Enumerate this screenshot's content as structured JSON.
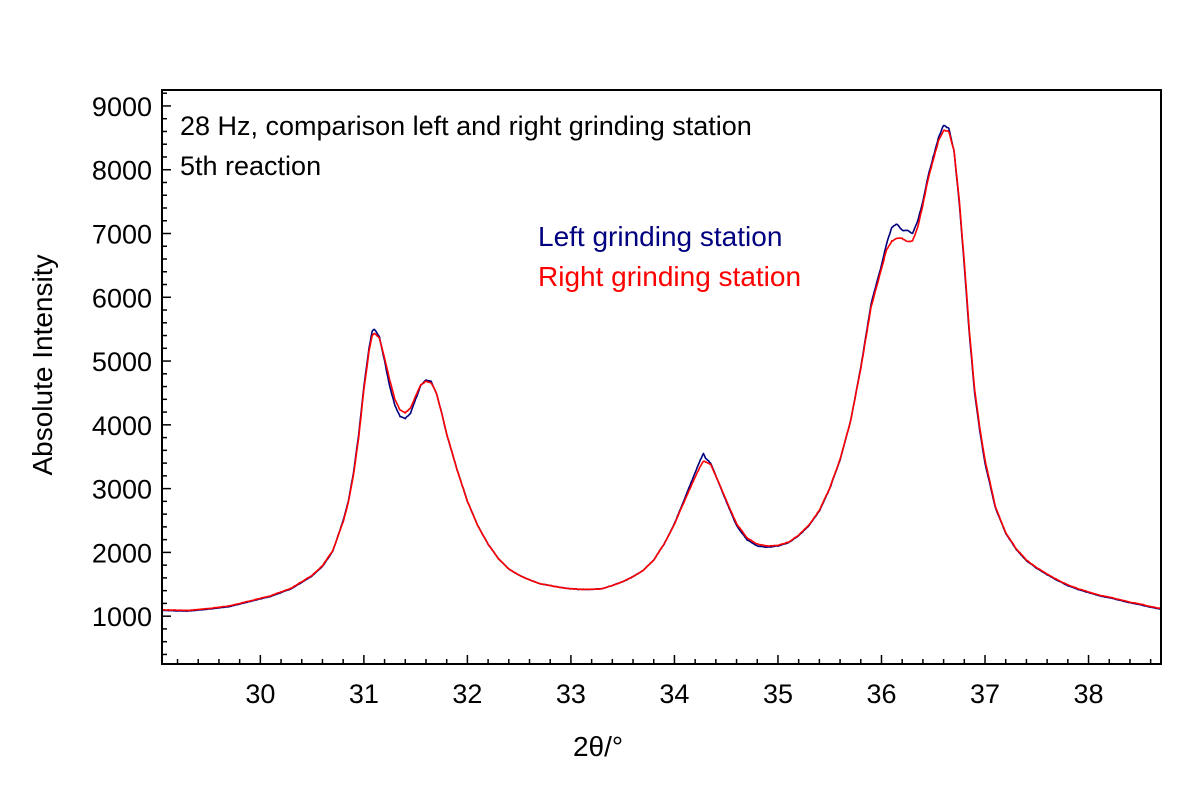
{
  "chart_data": {
    "type": "line",
    "annotation": [
      "28 Hz, comparison left and right grinding station",
      "5th reaction"
    ],
    "xlabel": "2θ/°",
    "ylabel": "Absolute Intensity",
    "xlim": [
      29.05,
      38.7
    ],
    "ylim": [
      250,
      9250
    ],
    "x_ticks": [
      30,
      31,
      32,
      33,
      34,
      35,
      36,
      37,
      38
    ],
    "y_ticks": [
      1000,
      2000,
      3000,
      4000,
      5000,
      6000,
      7000,
      8000,
      9000
    ],
    "grid": false,
    "legend_position": "upper-center",
    "series": [
      {
        "name": "Left grinding station",
        "color": "#000080",
        "points": [
          [
            29.05,
            1090
          ],
          [
            29.3,
            1080
          ],
          [
            29.5,
            1110
          ],
          [
            29.7,
            1150
          ],
          [
            29.9,
            1230
          ],
          [
            30.1,
            1310
          ],
          [
            30.3,
            1430
          ],
          [
            30.5,
            1630
          ],
          [
            30.6,
            1780
          ],
          [
            30.7,
            2020
          ],
          [
            30.8,
            2500
          ],
          [
            30.85,
            2800
          ],
          [
            30.9,
            3250
          ],
          [
            30.95,
            3850
          ],
          [
            31.0,
            4600
          ],
          [
            31.05,
            5200
          ],
          [
            31.08,
            5470
          ],
          [
            31.1,
            5500
          ],
          [
            31.15,
            5380
          ],
          [
            31.2,
            5000
          ],
          [
            31.25,
            4600
          ],
          [
            31.3,
            4300
          ],
          [
            31.35,
            4130
          ],
          [
            31.4,
            4100
          ],
          [
            31.45,
            4180
          ],
          [
            31.5,
            4400
          ],
          [
            31.55,
            4620
          ],
          [
            31.6,
            4700
          ],
          [
            31.65,
            4680
          ],
          [
            31.7,
            4500
          ],
          [
            31.75,
            4200
          ],
          [
            31.8,
            3850
          ],
          [
            31.9,
            3300
          ],
          [
            32.0,
            2800
          ],
          [
            32.1,
            2420
          ],
          [
            32.2,
            2130
          ],
          [
            32.3,
            1900
          ],
          [
            32.4,
            1740
          ],
          [
            32.5,
            1640
          ],
          [
            32.6,
            1570
          ],
          [
            32.7,
            1510
          ],
          [
            32.8,
            1480
          ],
          [
            32.9,
            1450
          ],
          [
            33.0,
            1430
          ],
          [
            33.1,
            1420
          ],
          [
            33.2,
            1420
          ],
          [
            33.3,
            1430
          ],
          [
            33.4,
            1480
          ],
          [
            33.5,
            1540
          ],
          [
            33.6,
            1620
          ],
          [
            33.7,
            1720
          ],
          [
            33.8,
            1880
          ],
          [
            33.9,
            2130
          ],
          [
            34.0,
            2450
          ],
          [
            34.1,
            2850
          ],
          [
            34.2,
            3250
          ],
          [
            34.25,
            3450
          ],
          [
            34.28,
            3550
          ],
          [
            34.3,
            3480
          ],
          [
            34.35,
            3400
          ],
          [
            34.4,
            3200
          ],
          [
            34.5,
            2800
          ],
          [
            34.6,
            2420
          ],
          [
            34.7,
            2200
          ],
          [
            34.8,
            2100
          ],
          [
            34.9,
            2080
          ],
          [
            35.0,
            2100
          ],
          [
            35.1,
            2150
          ],
          [
            35.2,
            2260
          ],
          [
            35.3,
            2420
          ],
          [
            35.4,
            2650
          ],
          [
            35.5,
            3000
          ],
          [
            35.6,
            3450
          ],
          [
            35.7,
            4050
          ],
          [
            35.8,
            4900
          ],
          [
            35.9,
            5900
          ],
          [
            36.0,
            6500
          ],
          [
            36.05,
            6850
          ],
          [
            36.1,
            7100
          ],
          [
            36.15,
            7150
          ],
          [
            36.2,
            7050
          ],
          [
            36.25,
            7050
          ],
          [
            36.3,
            7000
          ],
          [
            36.35,
            7200
          ],
          [
            36.4,
            7500
          ],
          [
            36.45,
            7900
          ],
          [
            36.5,
            8200
          ],
          [
            36.55,
            8500
          ],
          [
            36.6,
            8700
          ],
          [
            36.65,
            8650
          ],
          [
            36.7,
            8300
          ],
          [
            36.75,
            7500
          ],
          [
            36.8,
            6500
          ],
          [
            36.85,
            5400
          ],
          [
            36.9,
            4500
          ],
          [
            36.95,
            3900
          ],
          [
            37.0,
            3400
          ],
          [
            37.1,
            2700
          ],
          [
            37.2,
            2300
          ],
          [
            37.3,
            2050
          ],
          [
            37.4,
            1870
          ],
          [
            37.5,
            1750
          ],
          [
            37.6,
            1650
          ],
          [
            37.7,
            1560
          ],
          [
            37.8,
            1480
          ],
          [
            37.9,
            1420
          ],
          [
            38.0,
            1370
          ],
          [
            38.1,
            1320
          ],
          [
            38.2,
            1290
          ],
          [
            38.3,
            1250
          ],
          [
            38.4,
            1210
          ],
          [
            38.5,
            1180
          ],
          [
            38.6,
            1140
          ],
          [
            38.7,
            1110
          ]
        ]
      },
      {
        "name": "Right grinding station",
        "color": "#ff0000",
        "points": [
          [
            29.05,
            1100
          ],
          [
            29.3,
            1090
          ],
          [
            29.5,
            1120
          ],
          [
            29.7,
            1160
          ],
          [
            29.9,
            1240
          ],
          [
            30.1,
            1320
          ],
          [
            30.3,
            1440
          ],
          [
            30.5,
            1640
          ],
          [
            30.6,
            1790
          ],
          [
            30.7,
            2030
          ],
          [
            30.8,
            2480
          ],
          [
            30.85,
            2780
          ],
          [
            30.9,
            3220
          ],
          [
            30.95,
            3800
          ],
          [
            31.0,
            4550
          ],
          [
            31.05,
            5150
          ],
          [
            31.08,
            5400
          ],
          [
            31.1,
            5440
          ],
          [
            31.15,
            5360
          ],
          [
            31.2,
            5050
          ],
          [
            31.25,
            4700
          ],
          [
            31.3,
            4400
          ],
          [
            31.35,
            4230
          ],
          [
            31.4,
            4190
          ],
          [
            31.45,
            4260
          ],
          [
            31.5,
            4450
          ],
          [
            31.55,
            4630
          ],
          [
            31.6,
            4680
          ],
          [
            31.65,
            4660
          ],
          [
            31.7,
            4500
          ],
          [
            31.75,
            4200
          ],
          [
            31.8,
            3860
          ],
          [
            31.9,
            3300
          ],
          [
            32.0,
            2800
          ],
          [
            32.1,
            2420
          ],
          [
            32.2,
            2130
          ],
          [
            32.3,
            1900
          ],
          [
            32.4,
            1740
          ],
          [
            32.5,
            1640
          ],
          [
            32.6,
            1570
          ],
          [
            32.7,
            1510
          ],
          [
            32.8,
            1480
          ],
          [
            32.9,
            1450
          ],
          [
            33.0,
            1430
          ],
          [
            33.1,
            1420
          ],
          [
            33.2,
            1420
          ],
          [
            33.3,
            1430
          ],
          [
            33.4,
            1480
          ],
          [
            33.5,
            1540
          ],
          [
            33.6,
            1620
          ],
          [
            33.7,
            1720
          ],
          [
            33.8,
            1880
          ],
          [
            33.9,
            2130
          ],
          [
            34.0,
            2440
          ],
          [
            34.1,
            2820
          ],
          [
            34.2,
            3180
          ],
          [
            34.25,
            3350
          ],
          [
            34.28,
            3430
          ],
          [
            34.3,
            3420
          ],
          [
            34.35,
            3380
          ],
          [
            34.4,
            3200
          ],
          [
            34.5,
            2820
          ],
          [
            34.6,
            2450
          ],
          [
            34.7,
            2230
          ],
          [
            34.8,
            2130
          ],
          [
            34.9,
            2100
          ],
          [
            35.0,
            2110
          ],
          [
            35.1,
            2160
          ],
          [
            35.2,
            2270
          ],
          [
            35.3,
            2430
          ],
          [
            35.4,
            2660
          ],
          [
            35.5,
            3010
          ],
          [
            35.6,
            3460
          ],
          [
            35.7,
            4050
          ],
          [
            35.8,
            4880
          ],
          [
            35.9,
            5850
          ],
          [
            36.0,
            6450
          ],
          [
            36.05,
            6750
          ],
          [
            36.1,
            6880
          ],
          [
            36.15,
            6930
          ],
          [
            36.2,
            6920
          ],
          [
            36.25,
            6870
          ],
          [
            36.3,
            6880
          ],
          [
            36.35,
            7100
          ],
          [
            36.4,
            7450
          ],
          [
            36.45,
            7850
          ],
          [
            36.5,
            8150
          ],
          [
            36.55,
            8450
          ],
          [
            36.6,
            8620
          ],
          [
            36.65,
            8600
          ],
          [
            36.7,
            8300
          ],
          [
            36.75,
            7550
          ],
          [
            36.8,
            6550
          ],
          [
            36.85,
            5450
          ],
          [
            36.9,
            4550
          ],
          [
            36.95,
            3950
          ],
          [
            37.0,
            3450
          ],
          [
            37.1,
            2720
          ],
          [
            37.2,
            2310
          ],
          [
            37.3,
            2060
          ],
          [
            37.4,
            1880
          ],
          [
            37.5,
            1760
          ],
          [
            37.6,
            1660
          ],
          [
            37.7,
            1570
          ],
          [
            37.8,
            1490
          ],
          [
            37.9,
            1430
          ],
          [
            38.0,
            1380
          ],
          [
            38.1,
            1330
          ],
          [
            38.2,
            1300
          ],
          [
            38.3,
            1260
          ],
          [
            38.4,
            1220
          ],
          [
            38.5,
            1190
          ],
          [
            38.6,
            1150
          ],
          [
            38.7,
            1120
          ]
        ]
      }
    ]
  }
}
